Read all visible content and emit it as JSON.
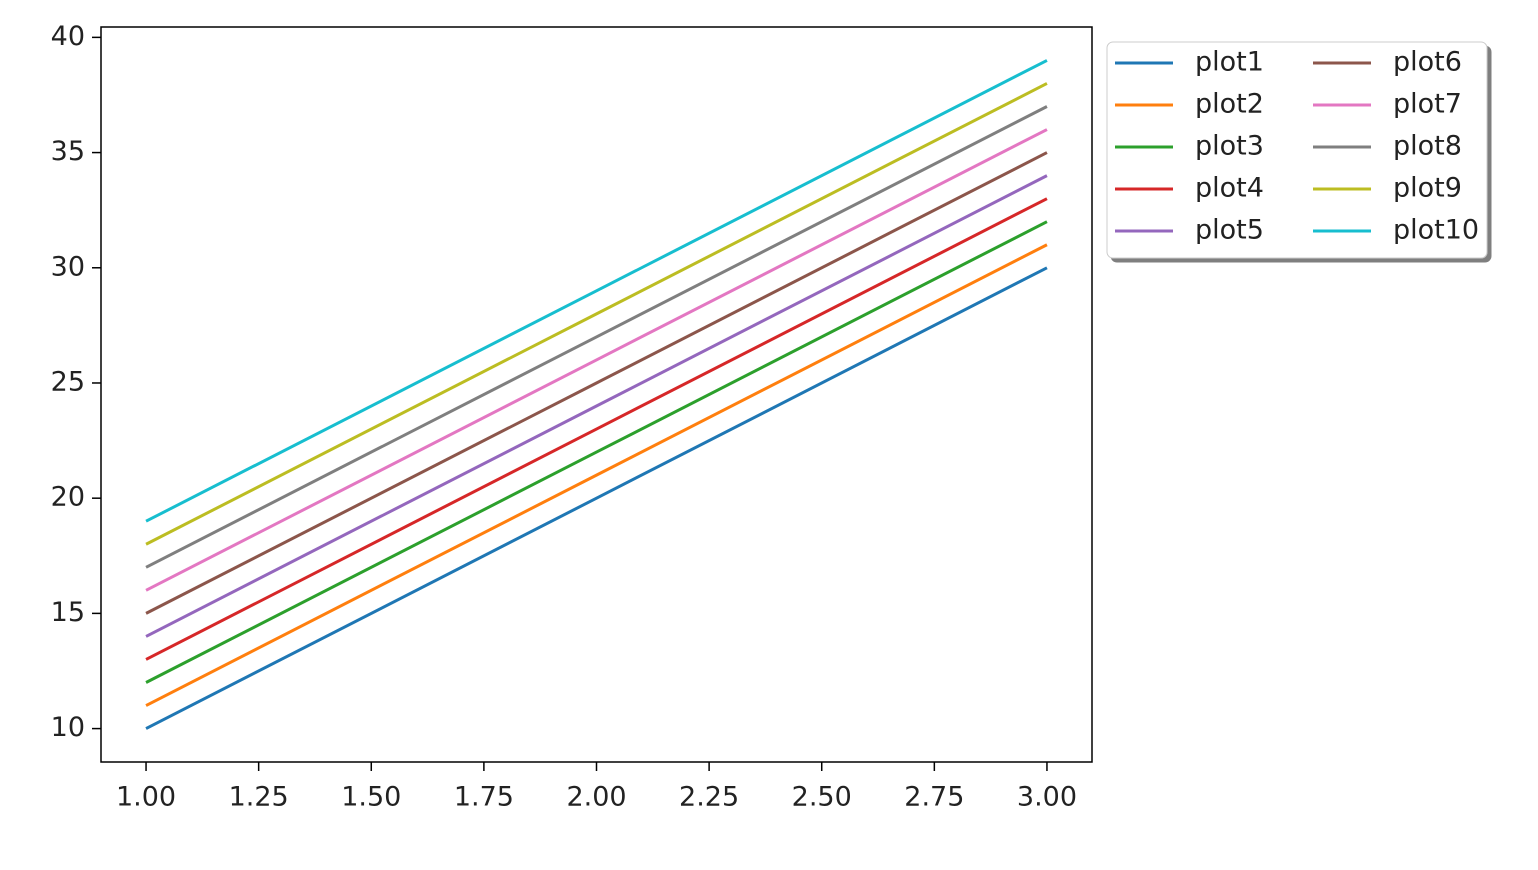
{
  "chart_data": {
    "type": "line",
    "x": [
      1,
      2,
      3
    ],
    "series": [
      {
        "name": "plot1",
        "color": "#1f77b4",
        "values": [
          10,
          20,
          30
        ]
      },
      {
        "name": "plot2",
        "color": "#ff7f0e",
        "values": [
          11,
          21,
          31
        ]
      },
      {
        "name": "plot3",
        "color": "#2ca02c",
        "values": [
          12,
          22,
          32
        ]
      },
      {
        "name": "plot4",
        "color": "#d62728",
        "values": [
          13,
          23,
          33
        ]
      },
      {
        "name": "plot5",
        "color": "#9467bd",
        "values": [
          14,
          24,
          34
        ]
      },
      {
        "name": "plot6",
        "color": "#8c564b",
        "values": [
          15,
          25,
          35
        ]
      },
      {
        "name": "plot7",
        "color": "#e377c2",
        "values": [
          16,
          26,
          36
        ]
      },
      {
        "name": "plot8",
        "color": "#7f7f7f",
        "values": [
          17,
          27,
          37
        ]
      },
      {
        "name": "plot9",
        "color": "#bcbd22",
        "values": [
          18,
          28,
          38
        ]
      },
      {
        "name": "plot10",
        "color": "#17becf",
        "values": [
          19,
          29,
          39
        ]
      }
    ],
    "xlim": [
      0.9,
      3.1
    ],
    "xticks": [
      {
        "value": 1,
        "label": "1.00"
      },
      1.25,
      {
        "value": 1.5,
        "label": "1.50"
      },
      1.75,
      {
        "value": 2,
        "label": "2.00"
      },
      2.25,
      {
        "value": 2.5,
        "label": "2.50"
      },
      2.75,
      {
        "value": 3,
        "label": "3.00"
      }
    ],
    "ylim": [
      8.55,
      40.45
    ],
    "yticks": [
      10,
      15,
      20,
      25,
      30,
      35,
      40
    ],
    "grid": false,
    "legend": {
      "position": "outside-upper-left",
      "columns": 2
    }
  }
}
